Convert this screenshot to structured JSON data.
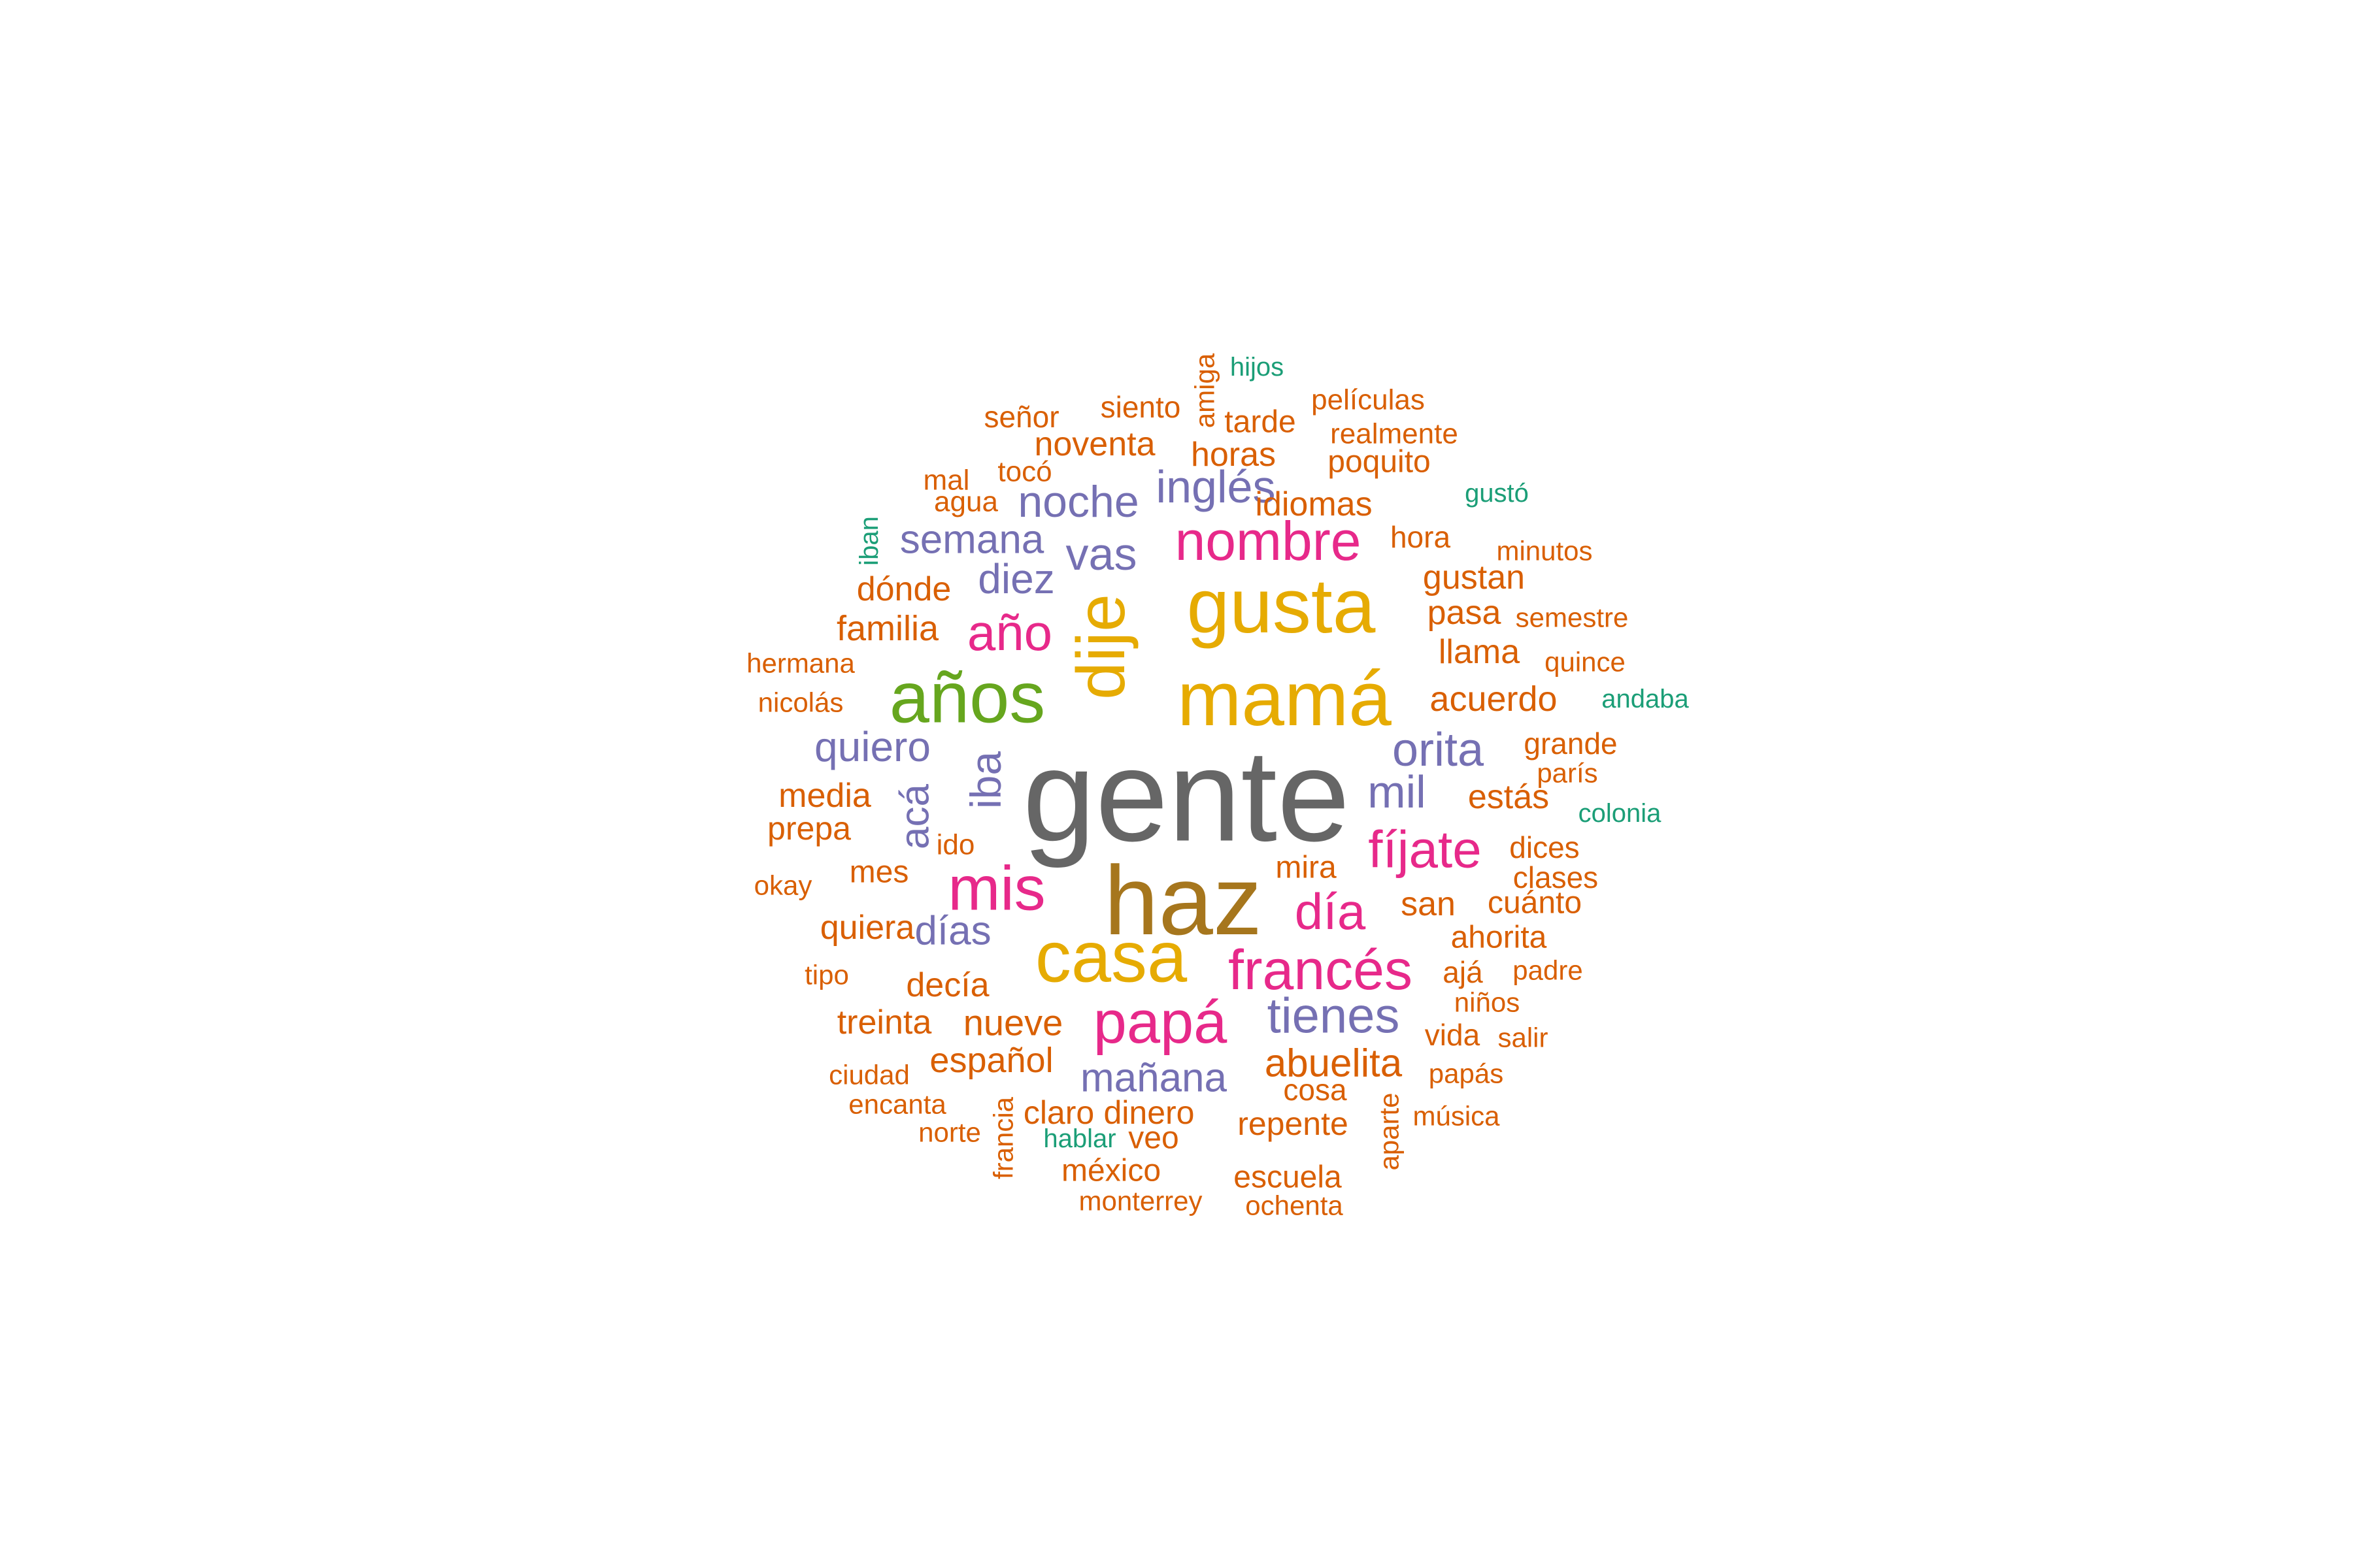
{
  "word_cloud": {
    "palette": {
      "gray": "#666666",
      "olive": "#a6761d",
      "gold": "#e6ab02",
      "green": "#66a61e",
      "magenta": "#e7298a",
      "purple": "#7570b3",
      "orange": "#d95f02",
      "teal": "#1b9e77"
    },
    "words": [
      {
        "text": "gente",
        "color": "gray"
      },
      {
        "text": "haz",
        "color": "olive"
      },
      {
        "text": "mamá",
        "color": "gold"
      },
      {
        "text": "gusta",
        "color": "gold"
      },
      {
        "text": "casa",
        "color": "gold"
      },
      {
        "text": "años",
        "color": "green"
      },
      {
        "text": "dije",
        "color": "gold"
      },
      {
        "text": "papá",
        "color": "magenta"
      },
      {
        "text": "francés",
        "color": "magenta"
      },
      {
        "text": "mis",
        "color": "magenta"
      },
      {
        "text": "nombre",
        "color": "magenta"
      },
      {
        "text": "fíjate",
        "color": "magenta"
      },
      {
        "text": "año",
        "color": "magenta"
      },
      {
        "text": "día",
        "color": "magenta"
      },
      {
        "text": "tienes",
        "color": "purple"
      },
      {
        "text": "orita",
        "color": "purple"
      },
      {
        "text": "inglés",
        "color": "purple"
      },
      {
        "text": "noche",
        "color": "purple"
      },
      {
        "text": "vas",
        "color": "purple"
      },
      {
        "text": "mil",
        "color": "purple"
      },
      {
        "text": "quiero",
        "color": "purple"
      },
      {
        "text": "semana",
        "color": "purple"
      },
      {
        "text": "diez",
        "color": "purple"
      },
      {
        "text": "mañana",
        "color": "purple"
      },
      {
        "text": "días",
        "color": "purple"
      },
      {
        "text": "iba",
        "color": "purple"
      },
      {
        "text": "acá",
        "color": "purple"
      },
      {
        "text": "abuelita",
        "color": "orange"
      },
      {
        "text": "nueve",
        "color": "orange"
      },
      {
        "text": "español",
        "color": "orange"
      },
      {
        "text": "familia",
        "color": "orange"
      },
      {
        "text": "acuerdo",
        "color": "orange"
      },
      {
        "text": "idiomas",
        "color": "orange"
      },
      {
        "text": "noventa",
        "color": "orange"
      },
      {
        "text": "horas",
        "color": "orange"
      },
      {
        "text": "dónde",
        "color": "orange"
      },
      {
        "text": "llama",
        "color": "orange"
      },
      {
        "text": "pasa",
        "color": "orange"
      },
      {
        "text": "gustan",
        "color": "orange"
      },
      {
        "text": "media",
        "color": "orange"
      },
      {
        "text": "estás",
        "color": "orange"
      },
      {
        "text": "san",
        "color": "orange"
      },
      {
        "text": "quiera",
        "color": "orange"
      },
      {
        "text": "decía",
        "color": "orange"
      },
      {
        "text": "treinta",
        "color": "orange"
      },
      {
        "text": "claro",
        "color": "orange"
      },
      {
        "text": "dinero",
        "color": "orange"
      },
      {
        "text": "repente",
        "color": "orange"
      },
      {
        "text": "prepa",
        "color": "orange"
      },
      {
        "text": "mes",
        "color": "orange"
      },
      {
        "text": "mira",
        "color": "orange"
      },
      {
        "text": "ahorita",
        "color": "orange"
      },
      {
        "text": "cuánto",
        "color": "orange"
      },
      {
        "text": "dices",
        "color": "orange"
      },
      {
        "text": "grande",
        "color": "orange"
      },
      {
        "text": "clases",
        "color": "orange"
      },
      {
        "text": "cosa",
        "color": "orange"
      },
      {
        "text": "vida",
        "color": "orange"
      },
      {
        "text": "ajá",
        "color": "orange"
      },
      {
        "text": "méxico",
        "color": "orange"
      },
      {
        "text": "escuela",
        "color": "orange"
      },
      {
        "text": "veo",
        "color": "orange"
      },
      {
        "text": "hora",
        "color": "orange"
      },
      {
        "text": "poquito",
        "color": "orange"
      },
      {
        "text": "tarde",
        "color": "orange"
      },
      {
        "text": "siento",
        "color": "orange"
      },
      {
        "text": "señor",
        "color": "orange"
      },
      {
        "text": "tocó",
        "color": "orange"
      },
      {
        "text": "agua",
        "color": "orange"
      },
      {
        "text": "mal",
        "color": "orange"
      },
      {
        "text": "películas",
        "color": "orange"
      },
      {
        "text": "realmente",
        "color": "orange"
      },
      {
        "text": "minutos",
        "color": "orange"
      },
      {
        "text": "semestre",
        "color": "orange"
      },
      {
        "text": "quince",
        "color": "orange"
      },
      {
        "text": "hermana",
        "color": "orange"
      },
      {
        "text": "nicolás",
        "color": "orange"
      },
      {
        "text": "okay",
        "color": "orange"
      },
      {
        "text": "tipo",
        "color": "orange"
      },
      {
        "text": "ido",
        "color": "orange"
      },
      {
        "text": "ciudad",
        "color": "orange"
      },
      {
        "text": "encanta",
        "color": "orange"
      },
      {
        "text": "norte",
        "color": "orange"
      },
      {
        "text": "monterrey",
        "color": "orange"
      },
      {
        "text": "ochenta",
        "color": "orange"
      },
      {
        "text": "música",
        "color": "orange"
      },
      {
        "text": "papás",
        "color": "orange"
      },
      {
        "text": "salir",
        "color": "orange"
      },
      {
        "text": "niños",
        "color": "orange"
      },
      {
        "text": "padre",
        "color": "orange"
      },
      {
        "text": "parís",
        "color": "orange"
      },
      {
        "text": "amiga",
        "color": "orange"
      },
      {
        "text": "francia",
        "color": "orange"
      },
      {
        "text": "aparte",
        "color": "orange"
      },
      {
        "text": "hijos",
        "color": "teal"
      },
      {
        "text": "gustó",
        "color": "teal"
      },
      {
        "text": "andaba",
        "color": "teal"
      },
      {
        "text": "colonia",
        "color": "teal"
      },
      {
        "text": "hablar",
        "color": "teal"
      },
      {
        "text": "iban",
        "color": "teal"
      }
    ]
  }
}
